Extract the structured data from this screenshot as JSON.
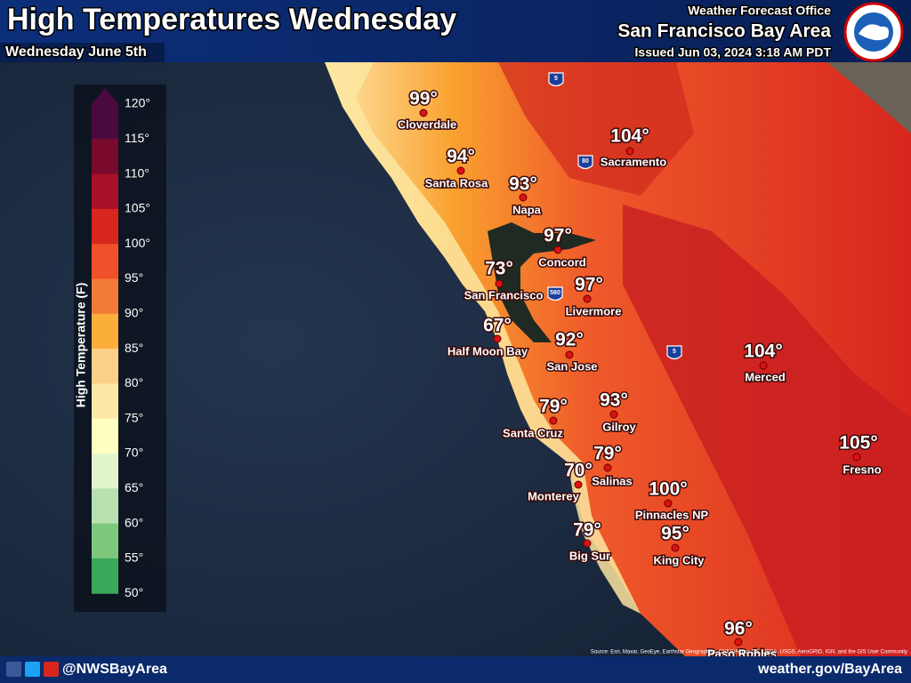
{
  "header": {
    "title": "High Temperatures Wednesday",
    "subtitle": "Wednesday June 5th",
    "office": "Weather Forecast Office",
    "area": "San Francisco Bay Area",
    "issued": "Issued Jun 03, 2024 3:18 AM PDT"
  },
  "legend": {
    "title": "High Temperature (F)",
    "ticks": [
      "120°",
      "115°",
      "110°",
      "105°",
      "100°",
      "95°",
      "90°",
      "85°",
      "80°",
      "75°",
      "70°",
      "65°",
      "60°",
      "55°",
      "50°"
    ],
    "colors": [
      "#4a0a3e",
      "#7a0a2c",
      "#a80f28",
      "#d7261e",
      "#f0502a",
      "#f47a3a",
      "#fcae3a",
      "#fdd08a",
      "#fde8a8",
      "#ffffc0",
      "#e2f5cc",
      "#b8e0b0",
      "#7ec87e",
      "#3aa85a"
    ]
  },
  "cities": [
    {
      "temp": "99°",
      "name": "Cloverdale"
    },
    {
      "temp": "104°",
      "name": "Sacramento"
    },
    {
      "temp": "94°",
      "name": "Santa Rosa"
    },
    {
      "temp": "93°",
      "name": "Napa"
    },
    {
      "temp": "97°",
      "name": "Concord"
    },
    {
      "temp": "73°",
      "name": "San Francisco"
    },
    {
      "temp": "97°",
      "name": "Livermore"
    },
    {
      "temp": "67°",
      "name": "Half Moon Bay"
    },
    {
      "temp": "92°",
      "name": "San Jose"
    },
    {
      "temp": "104°",
      "name": "Merced"
    },
    {
      "temp": "93°",
      "name": "Gilroy"
    },
    {
      "temp": "79°",
      "name": "Santa Cruz"
    },
    {
      "temp": "105°",
      "name": "Fresno"
    },
    {
      "temp": "79°",
      "name": "Salinas"
    },
    {
      "temp": "70°",
      "name": "Monterey"
    },
    {
      "temp": "100°",
      "name": "Pinnacles NP"
    },
    {
      "temp": "79°",
      "name": "Big Sur"
    },
    {
      "temp": "95°",
      "name": "King City"
    },
    {
      "temp": "96°",
      "name": "Paso Robles"
    }
  ],
  "highways": [
    "5",
    "80",
    "580",
    "5"
  ],
  "footer": {
    "handle": "@NWSBayArea",
    "url": "weather.gov/BayArea",
    "source": "Source: Esri, Maxar, GeoEye, Earthstar Geographics, CNES/Airbus DS, USDA, USGS, AeroGRID, IGN, and the GIS User Community"
  }
}
